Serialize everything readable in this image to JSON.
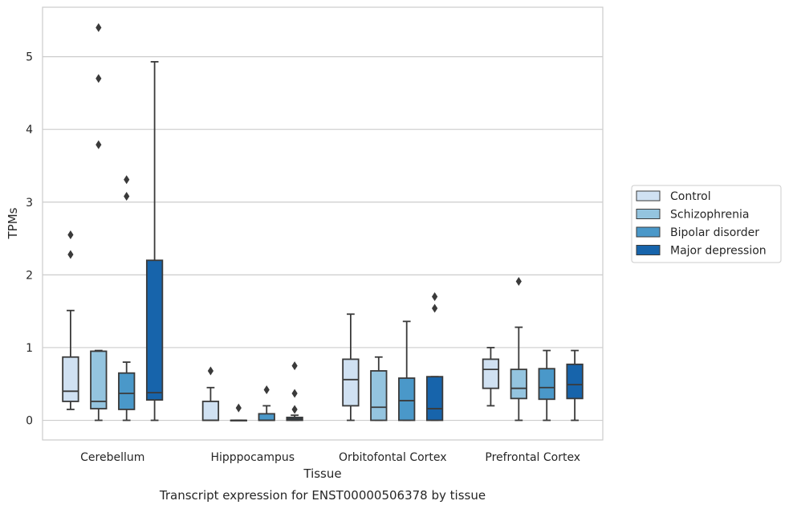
{
  "chart_data": {
    "type": "box",
    "caption": "Transcript expression for ENST00000506378 by tissue",
    "xlabel": "Tissue",
    "ylabel": "TPMs",
    "ylim": [
      -0.27,
      5.68
    ],
    "yticks": [
      0,
      1,
      2,
      3,
      4,
      5
    ],
    "grid": "horizontal",
    "legend_position": "right",
    "categories": [
      "Cerebellum",
      "Hipppocampus",
      "Orbitofontal Cortex",
      "Prefrontal Cortex"
    ],
    "series": [
      {
        "name": "Control",
        "color": "#d0e1f2",
        "boxes": [
          {
            "whislo": 0.15,
            "q1": 0.26,
            "med": 0.4,
            "q3": 0.87,
            "whishi": 1.51,
            "fliers": [
              2.28,
              2.55
            ]
          },
          {
            "whislo": 0.0,
            "q1": 0.0,
            "med": 0.0,
            "q3": 0.26,
            "whishi": 0.45,
            "fliers": [
              0.68
            ]
          },
          {
            "whislo": 0.0,
            "q1": 0.2,
            "med": 0.56,
            "q3": 0.84,
            "whishi": 1.46,
            "fliers": []
          },
          {
            "whislo": 0.2,
            "q1": 0.44,
            "med": 0.7,
            "q3": 0.84,
            "whishi": 1.0,
            "fliers": []
          }
        ]
      },
      {
        "name": "Schizophrenia",
        "color": "#94c4df",
        "boxes": [
          {
            "whislo": 0.0,
            "q1": 0.16,
            "med": 0.26,
            "q3": 0.95,
            "whishi": 0.96,
            "fliers": [
              3.79,
              4.7,
              5.4
            ]
          },
          {
            "whislo": 0.0,
            "q1": 0.0,
            "med": 0.0,
            "q3": 0.0,
            "whishi": 0.0,
            "fliers": [
              0.17
            ]
          },
          {
            "whislo": 0.0,
            "q1": 0.0,
            "med": 0.18,
            "q3": 0.68,
            "whishi": 0.87,
            "fliers": []
          },
          {
            "whislo": 0.0,
            "q1": 0.3,
            "med": 0.44,
            "q3": 0.7,
            "whishi": 1.28,
            "fliers": [
              1.91
            ]
          }
        ]
      },
      {
        "name": "Bipolar disorder",
        "color": "#4a98c9",
        "boxes": [
          {
            "whislo": 0.0,
            "q1": 0.15,
            "med": 0.37,
            "q3": 0.65,
            "whishi": 0.8,
            "fliers": [
              3.08,
              3.31
            ]
          },
          {
            "whislo": 0.0,
            "q1": 0.0,
            "med": 0.0,
            "q3": 0.09,
            "whishi": 0.2,
            "fliers": [
              0.42
            ]
          },
          {
            "whislo": 0.0,
            "q1": 0.0,
            "med": 0.27,
            "q3": 0.58,
            "whishi": 1.36,
            "fliers": []
          },
          {
            "whislo": 0.0,
            "q1": 0.29,
            "med": 0.45,
            "q3": 0.71,
            "whishi": 0.96,
            "fliers": []
          }
        ]
      },
      {
        "name": "Major depression",
        "color": "#1764ab",
        "boxes": [
          {
            "whislo": 0.0,
            "q1": 0.28,
            "med": 0.38,
            "q3": 2.2,
            "whishi": 4.93,
            "fliers": []
          },
          {
            "whislo": 0.0,
            "q1": 0.0,
            "med": 0.02,
            "q3": 0.04,
            "whishi": 0.07,
            "fliers": [
              0.15,
              0.37,
              0.75
            ]
          },
          {
            "whislo": 0.0,
            "q1": 0.0,
            "med": 0.16,
            "q3": 0.6,
            "whishi": 0.6,
            "fliers": [
              1.54,
              1.7
            ]
          },
          {
            "whislo": 0.0,
            "q1": 0.3,
            "med": 0.49,
            "q3": 0.77,
            "whishi": 0.96,
            "fliers": []
          }
        ]
      }
    ]
  }
}
